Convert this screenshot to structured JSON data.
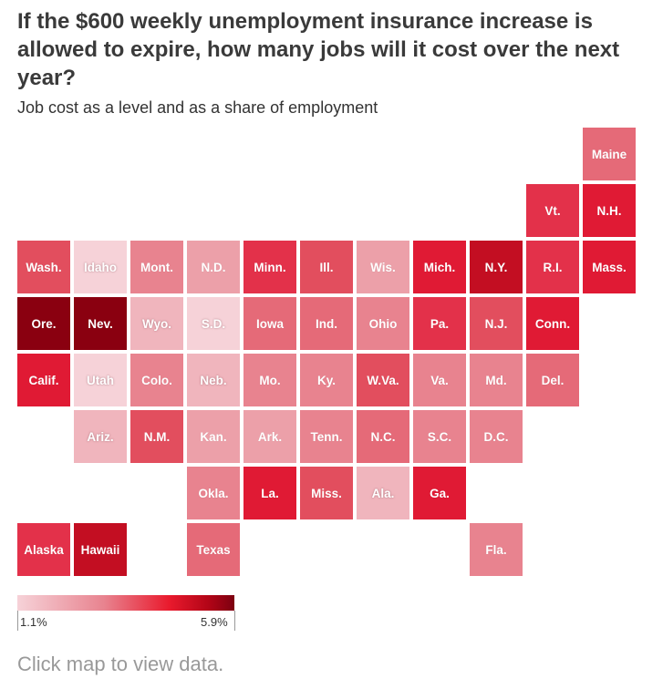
{
  "title": "If the $600 weekly unemployment insurance increase is allowed to expire, how many jobs will it cost over the next year?",
  "subtitle": "Job cost as a level and as a share of employment",
  "legend": {
    "min_label": "1.1%",
    "max_label": "5.9%"
  },
  "cta": "Click map to view data.",
  "colors": {
    "level_0": "#f6d2d8",
    "level_1": "#f0b5bd",
    "level_2": "#eca0a9",
    "level_3": "#e8838f",
    "level_4": "#e56a78",
    "level_5": "#e24e5e",
    "level_6": "#e3314a",
    "level_7": "#e01a34",
    "level_8": "#c30e22",
    "level_9": "#8a0010"
  },
  "states": [
    {
      "label": "Maine",
      "row": 0,
      "col": 10,
      "level": 4
    },
    {
      "label": "Vt.",
      "row": 1,
      "col": 9,
      "level": 6
    },
    {
      "label": "N.H.",
      "row": 1,
      "col": 10,
      "level": 7
    },
    {
      "label": "Wash.",
      "row": 2,
      "col": 0,
      "level": 5
    },
    {
      "label": "Idaho",
      "row": 2,
      "col": 1,
      "level": 0
    },
    {
      "label": "Mont.",
      "row": 2,
      "col": 2,
      "level": 3
    },
    {
      "label": "N.D.",
      "row": 2,
      "col": 3,
      "level": 2
    },
    {
      "label": "Minn.",
      "row": 2,
      "col": 4,
      "level": 6
    },
    {
      "label": "Ill.",
      "row": 2,
      "col": 5,
      "level": 5
    },
    {
      "label": "Wis.",
      "row": 2,
      "col": 6,
      "level": 2
    },
    {
      "label": "Mich.",
      "row": 2,
      "col": 7,
      "level": 7
    },
    {
      "label": "N.Y.",
      "row": 2,
      "col": 8,
      "level": 8
    },
    {
      "label": "R.I.",
      "row": 2,
      "col": 9,
      "level": 6
    },
    {
      "label": "Mass.",
      "row": 2,
      "col": 10,
      "level": 7
    },
    {
      "label": "Ore.",
      "row": 3,
      "col": 0,
      "level": 9
    },
    {
      "label": "Nev.",
      "row": 3,
      "col": 1,
      "level": 9
    },
    {
      "label": "Wyo.",
      "row": 3,
      "col": 2,
      "level": 1
    },
    {
      "label": "S.D.",
      "row": 3,
      "col": 3,
      "level": 0
    },
    {
      "label": "Iowa",
      "row": 3,
      "col": 4,
      "level": 4
    },
    {
      "label": "Ind.",
      "row": 3,
      "col": 5,
      "level": 4
    },
    {
      "label": "Ohio",
      "row": 3,
      "col": 6,
      "level": 3
    },
    {
      "label": "Pa.",
      "row": 3,
      "col": 7,
      "level": 6
    },
    {
      "label": "N.J.",
      "row": 3,
      "col": 8,
      "level": 5
    },
    {
      "label": "Conn.",
      "row": 3,
      "col": 9,
      "level": 7
    },
    {
      "label": "Calif.",
      "row": 4,
      "col": 0,
      "level": 7
    },
    {
      "label": "Utah",
      "row": 4,
      "col": 1,
      "level": 0
    },
    {
      "label": "Colo.",
      "row": 4,
      "col": 2,
      "level": 3
    },
    {
      "label": "Neb.",
      "row": 4,
      "col": 3,
      "level": 1
    },
    {
      "label": "Mo.",
      "row": 4,
      "col": 4,
      "level": 3
    },
    {
      "label": "Ky.",
      "row": 4,
      "col": 5,
      "level": 3
    },
    {
      "label": "W.Va.",
      "row": 4,
      "col": 6,
      "level": 5
    },
    {
      "label": "Va.",
      "row": 4,
      "col": 7,
      "level": 3
    },
    {
      "label": "Md.",
      "row": 4,
      "col": 8,
      "level": 3
    },
    {
      "label": "Del.",
      "row": 4,
      "col": 9,
      "level": 4
    },
    {
      "label": "Ariz.",
      "row": 5,
      "col": 1,
      "level": 1
    },
    {
      "label": "N.M.",
      "row": 5,
      "col": 2,
      "level": 5
    },
    {
      "label": "Kan.",
      "row": 5,
      "col": 3,
      "level": 2
    },
    {
      "label": "Ark.",
      "row": 5,
      "col": 4,
      "level": 2
    },
    {
      "label": "Tenn.",
      "row": 5,
      "col": 5,
      "level": 3
    },
    {
      "label": "N.C.",
      "row": 5,
      "col": 6,
      "level": 4
    },
    {
      "label": "S.C.",
      "row": 5,
      "col": 7,
      "level": 3
    },
    {
      "label": "D.C.",
      "row": 5,
      "col": 8,
      "level": 3
    },
    {
      "label": "Okla.",
      "row": 6,
      "col": 3,
      "level": 3
    },
    {
      "label": "La.",
      "row": 6,
      "col": 4,
      "level": 7
    },
    {
      "label": "Miss.",
      "row": 6,
      "col": 5,
      "level": 5
    },
    {
      "label": "Ala.",
      "row": 6,
      "col": 6,
      "level": 1
    },
    {
      "label": "Ga.",
      "row": 6,
      "col": 7,
      "level": 7
    },
    {
      "label": "Alaska",
      "row": 7,
      "col": 0,
      "level": 6
    },
    {
      "label": "Hawaii",
      "row": 7,
      "col": 1,
      "level": 8
    },
    {
      "label": "Texas",
      "row": 7,
      "col": 3,
      "level": 4
    },
    {
      "label": "Fla.",
      "row": 7,
      "col": 8,
      "level": 3
    }
  ]
}
